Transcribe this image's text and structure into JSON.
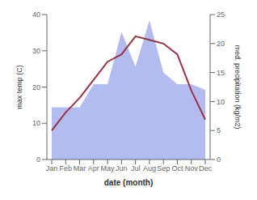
{
  "chart_data": {
    "type": "line",
    "categories": [
      "Jan",
      "Feb",
      "Mar",
      "Apr",
      "May",
      "Jun",
      "Jul",
      "Aug",
      "Sep",
      "Oct",
      "Nov",
      "Dec"
    ],
    "series": [
      {
        "type": "area",
        "axis": "y2",
        "color": "#b3bcee",
        "values": [
          9,
          9,
          9,
          13,
          13,
          22,
          16,
          24,
          15,
          13,
          13,
          12
        ]
      },
      {
        "type": "line",
        "axis": "y",
        "color": "#993344",
        "values": [
          8,
          13,
          17,
          22,
          27,
          29,
          34,
          33,
          32,
          29,
          19,
          11
        ]
      }
    ],
    "x_label": "date (month)",
    "y_label": "max temp (C)",
    "y2_label": "med. precipitation (kg/m2)",
    "ylim": [
      0,
      40
    ],
    "yticks": [
      0,
      10,
      20,
      30,
      40
    ],
    "y2lim": [
      0,
      25
    ],
    "y2ticks": [
      0,
      5,
      10,
      15,
      20,
      25
    ],
    "grid": false
  }
}
